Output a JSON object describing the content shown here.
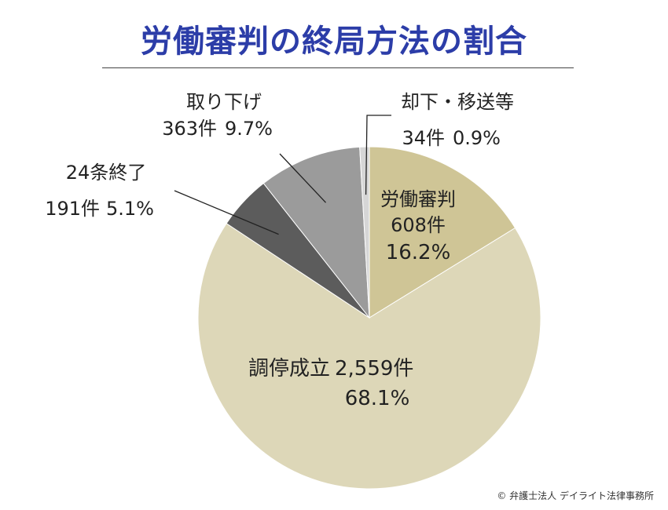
{
  "title": "労働審判の終局方法の割合",
  "copyright": "© 弁護士法人 デイライト法律事務所",
  "chart_data": {
    "type": "pie",
    "title": "労働審判の終局方法の割合",
    "start_angle_deg": 0,
    "direction": "clockwise",
    "slices": [
      {
        "name": "労働審判",
        "count_label": "608件",
        "pct_label": "16.2%",
        "value": 16.2,
        "color": "#cfc596"
      },
      {
        "name": "調停成立",
        "count_label": "2,559件",
        "pct_label": "68.1%",
        "value": 68.1,
        "color": "#ddd7b8"
      },
      {
        "name": "24条終了",
        "count_label": "191件",
        "pct_label": "5.1%",
        "value": 5.1,
        "color": "#5c5c5c"
      },
      {
        "name": "取り下げ",
        "count_label": "363件",
        "pct_label": "9.7%",
        "value": 9.7,
        "color": "#9b9b9b"
      },
      {
        "name": "却下・移送等",
        "count_label": "34件",
        "pct_label": "0.9%",
        "value": 0.9,
        "color": "#d6d6d6"
      }
    ]
  }
}
